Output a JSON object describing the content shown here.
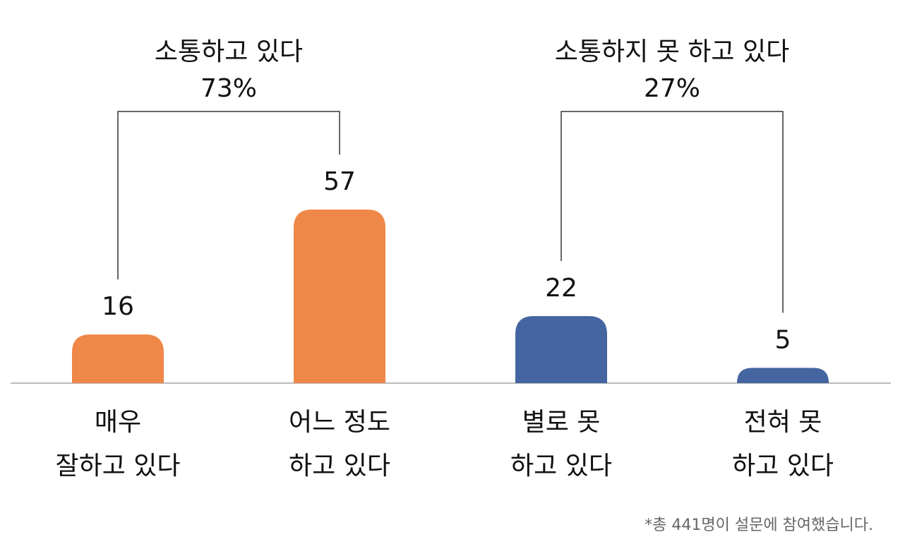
{
  "chart_data": {
    "type": "bar",
    "categories": [
      [
        "매우",
        "잘하고 있다"
      ],
      [
        "어느 정도",
        "하고 있다"
      ],
      [
        "별로 못",
        "하고 있다"
      ],
      [
        "전혀 못",
        "하고 있다"
      ]
    ],
    "values": [
      16,
      57,
      22,
      5
    ],
    "colors": [
      "#ef8748",
      "#ef8748",
      "#44659f",
      "#44659f"
    ],
    "groups": [
      {
        "label": "소통하고 있다",
        "value": 73,
        "value_label": "73%"
      },
      {
        "label": "소통하지 못 하고 있다",
        "value": 27,
        "value_label": "27%"
      }
    ],
    "footnote": "*총 441명이 설문에 참여했습니다."
  }
}
